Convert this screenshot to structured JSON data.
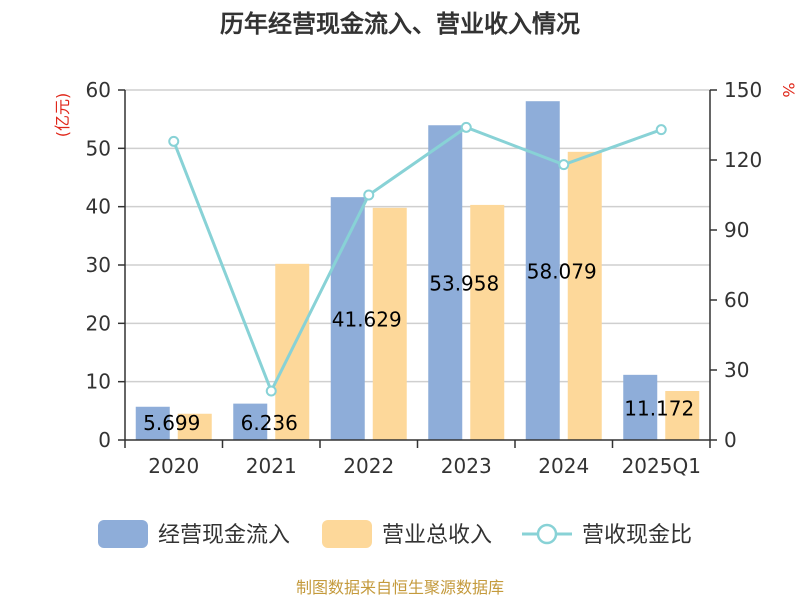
{
  "chart_data": {
    "type": "bar",
    "title": "历年经营现金流入、营业收入情况",
    "categories": [
      "2020",
      "2021",
      "2022",
      "2023",
      "2024",
      "2025Q1"
    ],
    "series": [
      {
        "name": "经营现金流入",
        "kind": "bar",
        "axis": "left",
        "color": "#8eadd9",
        "values": [
          5.699,
          6.236,
          41.629,
          53.958,
          58.079,
          11.172
        ],
        "labels": [
          "5.699",
          "6.236",
          "41.629",
          "53.958",
          "58.079",
          "11.172"
        ]
      },
      {
        "name": "营业总收入",
        "kind": "bar",
        "axis": "left",
        "color": "#fdd89a",
        "values": [
          4.5,
          30.2,
          39.8,
          40.3,
          49.4,
          8.4
        ]
      },
      {
        "name": "营收现金比",
        "kind": "line",
        "axis": "right",
        "color": "#88d2d6",
        "values": [
          128,
          21,
          105,
          134,
          118,
          133
        ]
      }
    ],
    "y_left": {
      "unit": "(亿元)",
      "min": 0,
      "max": 60,
      "ticks": [
        "0",
        "10",
        "20",
        "30",
        "40",
        "50",
        "60"
      ]
    },
    "y_right": {
      "unit": "%",
      "min": 0,
      "max": 150,
      "ticks": [
        "0",
        "30",
        "60",
        "90",
        "120",
        "150"
      ]
    },
    "grid": true,
    "legend_position": "bottom",
    "source": "制图数据来自恒生聚源数据库"
  }
}
